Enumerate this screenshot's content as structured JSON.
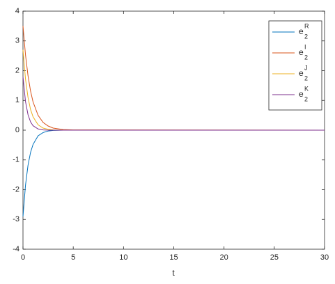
{
  "chart_data": {
    "type": "line",
    "xlabel": "t",
    "x": [
      0,
      0.25,
      0.5,
      0.75,
      1,
      1.5,
      2,
      2.5,
      3,
      4,
      5,
      30
    ],
    "series": [
      {
        "name": "e",
        "subscript": "2",
        "superscript": "R",
        "color": "#0072bd",
        "values": [
          -2.9,
          -1.85,
          -1.18,
          -0.75,
          -0.48,
          -0.19,
          -0.08,
          -0.03,
          -0.01,
          0,
          0,
          0
        ]
      },
      {
        "name": "e",
        "subscript": "2",
        "superscript": "I",
        "color": "#d95319",
        "values": [
          3.5,
          2.53,
          1.83,
          1.32,
          0.95,
          0.5,
          0.26,
          0.14,
          0.07,
          0.02,
          0.01,
          0
        ]
      },
      {
        "name": "e",
        "subscript": "2",
        "superscript": "J",
        "color": "#edb120",
        "values": [
          2.7,
          1.72,
          1.1,
          0.7,
          0.45,
          0.18,
          0.07,
          0.03,
          0.01,
          0,
          0,
          0
        ]
      },
      {
        "name": "e",
        "subscript": "2",
        "superscript": "K",
        "color": "#7e2f8e",
        "values": [
          1.8,
          0.96,
          0.52,
          0.28,
          0.15,
          0.04,
          0.01,
          0,
          0,
          0,
          0,
          0
        ]
      }
    ],
    "xlim": [
      0,
      30
    ],
    "xticks": [
      0,
      5,
      10,
      15,
      20,
      25,
      30
    ],
    "ylim": [
      -4,
      4
    ],
    "yticks": [
      -4,
      -3,
      -2,
      -1,
      0,
      1,
      2,
      3,
      4
    ],
    "grid": false,
    "legend": "top-right"
  }
}
